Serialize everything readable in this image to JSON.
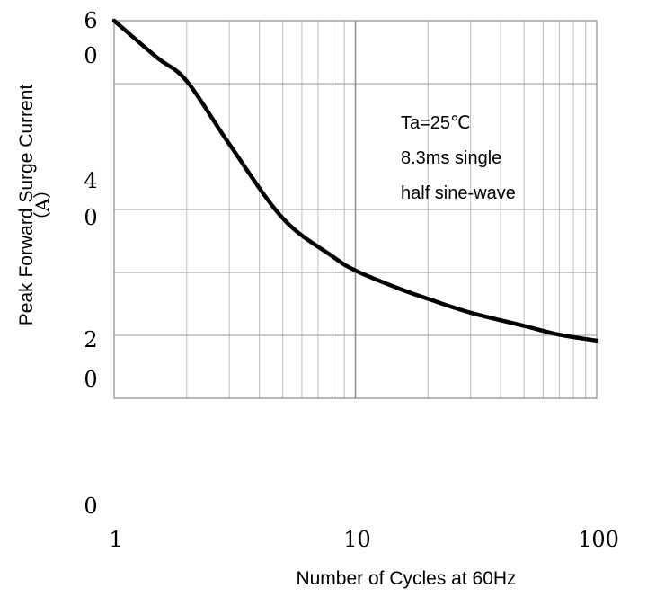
{
  "chart_data": {
    "type": "line",
    "xlabel": "Number of Cycles at 60Hz",
    "ylabel": "Peak Forward Surge Current",
    "ylabel_unit": "（A）",
    "x_scale": "log",
    "xlim": [
      1,
      100
    ],
    "ylim": [
      0,
      60
    ],
    "x_ticks": [
      {
        "value": 1,
        "label": "1"
      },
      {
        "value": 10,
        "label": "10"
      },
      {
        "value": 100,
        "label": "100"
      }
    ],
    "y_ticks": [
      {
        "value": 60,
        "label_top": "6",
        "label_bottom": "0"
      },
      {
        "value": 40,
        "label_top": "4",
        "label_bottom": "0"
      },
      {
        "value": 20,
        "label_top": "2",
        "label_bottom": "0"
      },
      {
        "value": 0,
        "label_top": "",
        "label_bottom": "0"
      }
    ],
    "annotations": [
      "Ta=25℃",
      "8.3ms single",
      "half sine-wave"
    ],
    "series": [
      {
        "color": "#000000",
        "points": [
          {
            "x": 1,
            "y": 60
          },
          {
            "x": 1.5,
            "y": 54.2
          },
          {
            "x": 2,
            "y": 50.4
          },
          {
            "x": 3,
            "y": 45.2
          },
          {
            "x": 5,
            "y": 38.6
          },
          {
            "x": 8,
            "y": 32.6
          },
          {
            "x": 10,
            "y": 30.3
          },
          {
            "x": 15,
            "y": 27.5
          },
          {
            "x": 20,
            "y": 25.8
          },
          {
            "x": 30,
            "y": 23.6
          },
          {
            "x": 50,
            "y": 21.5
          },
          {
            "x": 70,
            "y": 20.1
          },
          {
            "x": 100,
            "y": 18.3
          }
        ]
      }
    ],
    "grid": true
  }
}
